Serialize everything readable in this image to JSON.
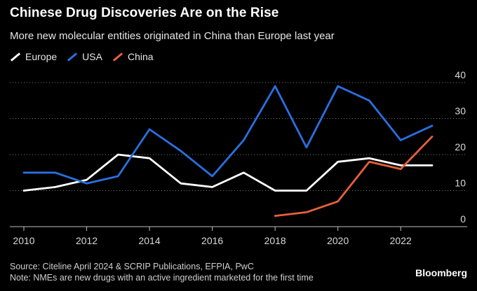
{
  "title": "Chinese Drug Discoveries Are on the Rise",
  "subtitle": "More new molecular entities originated in China than Europe last year",
  "footer": {
    "source": "Source: Citeline April 2024 & SCRIP Publications, EFPIA, PwC",
    "note": "Note: NMEs are new drugs with an active ingredient marketed for the first time"
  },
  "brand": "Bloomberg",
  "chart_data": {
    "type": "line",
    "title": "Chinese Drug Discoveries Are on the Rise",
    "subtitle": "More new molecular entities originated in China than Europe last year",
    "xlabel": "",
    "ylabel": "",
    "xlim": [
      2010,
      2023
    ],
    "ylim": [
      0,
      40
    ],
    "x_ticks": [
      2010,
      2012,
      2014,
      2016,
      2018,
      2020,
      2022
    ],
    "y_ticks": [
      0,
      10,
      20,
      30,
      40
    ],
    "grid": "horizontal dotted",
    "legend_position": "top-left",
    "series": [
      {
        "name": "Europe",
        "color": "#ffffff",
        "x": [
          2010,
          2011,
          2012,
          2013,
          2014,
          2015,
          2016,
          2017,
          2018,
          2019,
          2020,
          2021,
          2022,
          2023
        ],
        "values": [
          10,
          11,
          13,
          20,
          19,
          12,
          11,
          15,
          10,
          10,
          18,
          19,
          17,
          17
        ]
      },
      {
        "name": "USA",
        "color": "#2b6fe0",
        "x": [
          2010,
          2011,
          2012,
          2013,
          2014,
          2015,
          2016,
          2017,
          2018,
          2019,
          2020,
          2021,
          2022,
          2023
        ],
        "values": [
          15,
          15,
          12,
          14,
          27,
          21,
          14,
          24,
          39,
          22,
          39,
          35,
          24,
          28
        ]
      },
      {
        "name": "China",
        "color": "#e8603c",
        "x": [
          2018,
          2019,
          2020,
          2021,
          2022,
          2023
        ],
        "values": [
          3,
          4,
          7,
          18,
          16,
          25
        ]
      }
    ]
  }
}
